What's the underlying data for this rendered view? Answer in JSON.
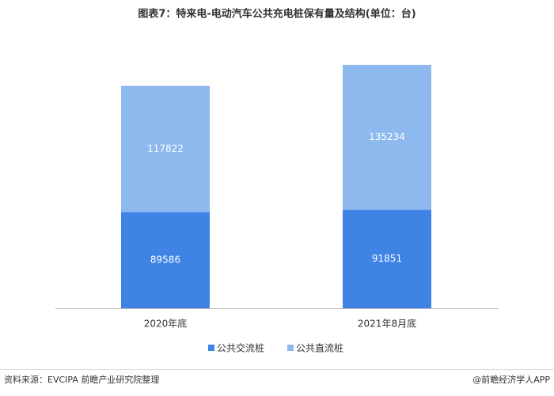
{
  "chart_data": {
    "type": "bar",
    "stacked": true,
    "title": "图表7：特来电-电动汽车公共充电桩保有量及结构(单位：台)",
    "categories": [
      "2020年底",
      "2021年8月底"
    ],
    "series": [
      {
        "name": "公共交流桩",
        "color": "#3f84e5",
        "values": [
          89586,
          91851
        ]
      },
      {
        "name": "公共直流桩",
        "color": "#8db9ef",
        "values": [
          117822,
          135234
        ]
      }
    ]
  },
  "footer": {
    "source": "资料来源：EVCIPA 前瞻产业研究院整理",
    "credit": "@前瞻经济学人APP"
  }
}
